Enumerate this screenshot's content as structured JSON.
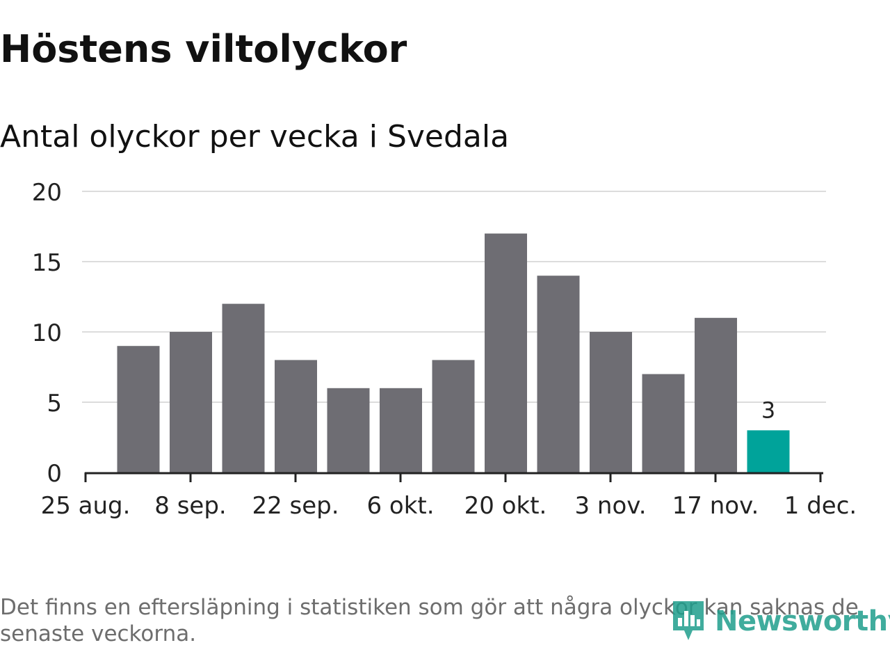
{
  "title": "Höstens viltolyckor",
  "subtitle": "Antal olyckor per vecka i Svedala",
  "footnote": "Det finns en eftersläpning i statistiken som gör att några olyckor kan saknas de senaste veckorna.",
  "brand": {
    "name": "Newsworthy",
    "color": "#1f9e8c",
    "icon": "newsworthy-logo-icon"
  },
  "colors": {
    "bar": "#6e6d73",
    "highlight": "#00a39a",
    "grid": "#dcdcdc",
    "axis": "#222222",
    "text": "#222222"
  },
  "chart_data": {
    "type": "bar",
    "categories": [
      "2019-09-02",
      "2019-09-09",
      "2019-09-16",
      "2019-09-23",
      "2019-09-30",
      "2019-10-07",
      "2019-10-14",
      "2019-10-21",
      "2019-10-28",
      "2019-11-04",
      "2019-11-11",
      "2019-11-18",
      "2019-11-25"
    ],
    "values": [
      9,
      10,
      12,
      8,
      6,
      6,
      8,
      17,
      14,
      10,
      7,
      11,
      3
    ],
    "highlight_index": 12,
    "data_labels": [
      {
        "index": 12,
        "text": "3"
      }
    ],
    "ylim": [
      0,
      20
    ],
    "yticks": [
      "0",
      "5",
      "10",
      "15",
      "20"
    ],
    "xticks": [
      "25 aug.",
      "8 sep.",
      "22 sep.",
      "6 okt.",
      "20 okt.",
      "3 nov.",
      "17 nov.",
      "1 dec."
    ],
    "grid": true,
    "title": "Höstens viltolyckor",
    "subtitle": "Antal olyckor per vecka i Svedala",
    "xlabel": "",
    "ylabel": ""
  }
}
